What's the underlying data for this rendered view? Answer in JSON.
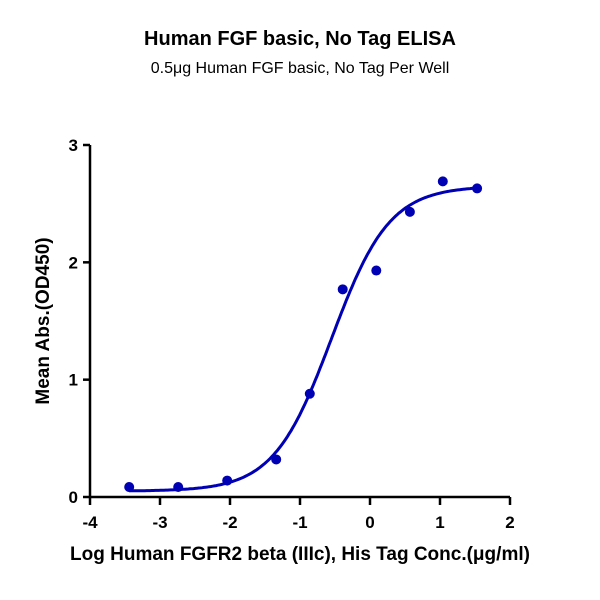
{
  "chart": {
    "title": "Human FGF basic, No Tag ELISA",
    "subtitle": "0.5μg Human FGF basic, No Tag Per Well",
    "xlabel": "Log Human FGFR2 beta (IIIc), His Tag Conc.(μg/ml)",
    "ylabel": "Mean Abs.(OD450)"
  },
  "chart_data": {
    "type": "scatter",
    "title": "Human FGF basic, No Tag ELISA",
    "subtitle": "0.5μg Human FGF basic, No Tag Per Well",
    "xlabel": "Log Human FGFR2 beta (IIIc), His Tag Conc.(μg/ml)",
    "ylabel": "Mean Abs.(OD450)",
    "xlim": [
      -4,
      2
    ],
    "ylim": [
      0,
      3
    ],
    "xticks": [
      -4,
      -3,
      -2,
      -1,
      0,
      1,
      2
    ],
    "yticks": [
      0,
      1,
      2,
      3
    ],
    "grid": false,
    "legend": null,
    "color": "#0000b4",
    "series": [
      {
        "name": "Mean Abs.(OD450)",
        "x": [
          -3.44,
          -2.74,
          -2.04,
          -1.34,
          -0.86,
          -0.39,
          0.09,
          0.57,
          1.04,
          1.53
        ],
        "y": [
          0.085,
          0.085,
          0.14,
          0.32,
          0.88,
          1.77,
          1.93,
          2.43,
          2.69,
          2.63
        ]
      }
    ],
    "fit": {
      "type": "4PL sigmoidal",
      "bottom": 0.05,
      "top": 2.65,
      "log_ec50": -0.55,
      "hill_slope": 1.05
    }
  }
}
